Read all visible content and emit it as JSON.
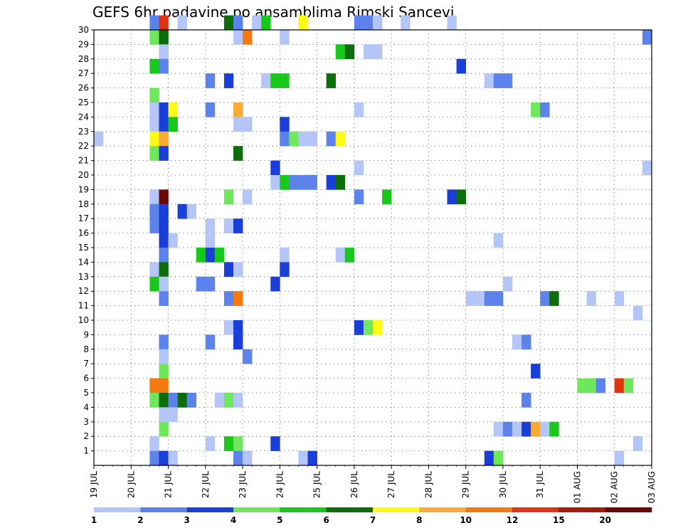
{
  "chart_data": {
    "type": "heatmap",
    "title": "GEFS 6hr padavine po ansamblima Rimski Sancevi",
    "xlabel": "",
    "ylabel": "",
    "x_tick_labels": [
      "19 JUL",
      "20 JUL",
      "21 JUL",
      "22 JUL",
      "23 JUL",
      "24 JUL",
      "25 JUL",
      "26 JUL",
      "27 JUL",
      "28 JUL",
      "29 JUL",
      "30 JUL",
      "31 JUL",
      "01 AUG",
      "02 AUG",
      "03 AUG"
    ],
    "x_steps_per_day": 4,
    "x_range_steps": [
      0,
      60
    ],
    "y_tick_labels": [
      "1",
      "2",
      "3",
      "4",
      "5",
      "6",
      "7",
      "8",
      "9",
      "10",
      "11",
      "12",
      "13",
      "14",
      "15",
      "16",
      "17",
      "18",
      "19",
      "20",
      "21",
      "22",
      "23",
      "24",
      "25",
      "26",
      "27",
      "28",
      "29",
      "30"
    ],
    "y_range": [
      0,
      30
    ],
    "grid": true,
    "colorbar": {
      "placement": "bottom",
      "labels": [
        "1",
        "2",
        "3",
        "4",
        "5",
        "6",
        "7",
        "8",
        "10",
        "12",
        "15",
        "20"
      ],
      "colors": [
        "#b4c6f8",
        "#5c82ec",
        "#1a3fd8",
        "#6ee85a",
        "#18c81a",
        "#0b6e0b",
        "#fdfb16",
        "#fbab32",
        "#f47a0f",
        "#de3412",
        "#a51a08",
        "#6b0808"
      ]
    },
    "cells_note_format": "[member, step, color_index]",
    "cells": [
      [
        30,
        6,
        1
      ],
      [
        30,
        7,
        9
      ],
      [
        30,
        9,
        0
      ],
      [
        30,
        14,
        5
      ],
      [
        30,
        15,
        1
      ],
      [
        30,
        17,
        0
      ],
      [
        30,
        18,
        4
      ],
      [
        30,
        22,
        6
      ],
      [
        30,
        28,
        1
      ],
      [
        30,
        29,
        1
      ],
      [
        30,
        30,
        0
      ],
      [
        30,
        33,
        0
      ],
      [
        30,
        38,
        0
      ],
      [
        29,
        6,
        3
      ],
      [
        29,
        7,
        5
      ],
      [
        29,
        15,
        0
      ],
      [
        29,
        16,
        8
      ],
      [
        29,
        20,
        0
      ],
      [
        29,
        59,
        1
      ],
      [
        28,
        7,
        0
      ],
      [
        28,
        26,
        4
      ],
      [
        28,
        27,
        5
      ],
      [
        28,
        29,
        0
      ],
      [
        28,
        30,
        0
      ],
      [
        27,
        6,
        4
      ],
      [
        27,
        7,
        1
      ],
      [
        27,
        39,
        2
      ],
      [
        26,
        12,
        1
      ],
      [
        26,
        14,
        2
      ],
      [
        26,
        18,
        0
      ],
      [
        26,
        19,
        4
      ],
      [
        26,
        20,
        4
      ],
      [
        26,
        25,
        5
      ],
      [
        26,
        42,
        0
      ],
      [
        26,
        43,
        1
      ],
      [
        26,
        44,
        1
      ],
      [
        25,
        6,
        3
      ],
      [
        24,
        6,
        0
      ],
      [
        24,
        7,
        2
      ],
      [
        24,
        8,
        6
      ],
      [
        24,
        12,
        1
      ],
      [
        24,
        15,
        7
      ],
      [
        24,
        28,
        0
      ],
      [
        24,
        47,
        3
      ],
      [
        24,
        48,
        1
      ],
      [
        23,
        6,
        0
      ],
      [
        23,
        7,
        2
      ],
      [
        23,
        8,
        4
      ],
      [
        23,
        15,
        0
      ],
      [
        23,
        16,
        0
      ],
      [
        23,
        20,
        2
      ],
      [
        22,
        0,
        0
      ],
      [
        22,
        6,
        6
      ],
      [
        22,
        7,
        7
      ],
      [
        22,
        20,
        1
      ],
      [
        22,
        21,
        3
      ],
      [
        22,
        22,
        0
      ],
      [
        22,
        23,
        0
      ],
      [
        22,
        25,
        1
      ],
      [
        22,
        26,
        6
      ],
      [
        21,
        6,
        3
      ],
      [
        21,
        7,
        2
      ],
      [
        21,
        15,
        5
      ],
      [
        20,
        19,
        2
      ],
      [
        20,
        28,
        0
      ],
      [
        20,
        59,
        0
      ],
      [
        19,
        19,
        0
      ],
      [
        19,
        20,
        4
      ],
      [
        19,
        21,
        1
      ],
      [
        19,
        22,
        1
      ],
      [
        19,
        23,
        1
      ],
      [
        19,
        25,
        2
      ],
      [
        19,
        26,
        5
      ],
      [
        18,
        6,
        0
      ],
      [
        18,
        7,
        11
      ],
      [
        18,
        14,
        3
      ],
      [
        18,
        16,
        0
      ],
      [
        18,
        28,
        1
      ],
      [
        18,
        31,
        4
      ],
      [
        18,
        38,
        2
      ],
      [
        18,
        39,
        5
      ],
      [
        17,
        6,
        1
      ],
      [
        17,
        7,
        2
      ],
      [
        17,
        9,
        2
      ],
      [
        17,
        10,
        0
      ],
      [
        16,
        6,
        1
      ],
      [
        16,
        7,
        2
      ],
      [
        16,
        12,
        0
      ],
      [
        16,
        14,
        0
      ],
      [
        16,
        15,
        2
      ],
      [
        15,
        7,
        2
      ],
      [
        15,
        8,
        0
      ],
      [
        15,
        12,
        0
      ],
      [
        15,
        43,
        0
      ],
      [
        14,
        7,
        1
      ],
      [
        14,
        11,
        4
      ],
      [
        14,
        12,
        2
      ],
      [
        14,
        13,
        4
      ],
      [
        14,
        20,
        0
      ],
      [
        14,
        26,
        0
      ],
      [
        14,
        27,
        4
      ],
      [
        13,
        6,
        0
      ],
      [
        13,
        7,
        5
      ],
      [
        13,
        14,
        2
      ],
      [
        13,
        15,
        0
      ],
      [
        13,
        20,
        2
      ],
      [
        12,
        6,
        4
      ],
      [
        12,
        7,
        0
      ],
      [
        12,
        11,
        1
      ],
      [
        12,
        12,
        1
      ],
      [
        12,
        19,
        2
      ],
      [
        12,
        44,
        0
      ],
      [
        11,
        7,
        1
      ],
      [
        11,
        14,
        1
      ],
      [
        11,
        15,
        8
      ],
      [
        11,
        40,
        0
      ],
      [
        11,
        41,
        0
      ],
      [
        11,
        42,
        1
      ],
      [
        11,
        43,
        1
      ],
      [
        11,
        48,
        1
      ],
      [
        11,
        49,
        5
      ],
      [
        11,
        53,
        0
      ],
      [
        11,
        56,
        0
      ],
      [
        10,
        58,
        0
      ],
      [
        9,
        14,
        0
      ],
      [
        9,
        15,
        2
      ],
      [
        9,
        28,
        2
      ],
      [
        9,
        29,
        3
      ],
      [
        9,
        30,
        6
      ],
      [
        8,
        7,
        1
      ],
      [
        8,
        12,
        1
      ],
      [
        8,
        15,
        2
      ],
      [
        8,
        45,
        0
      ],
      [
        8,
        46,
        1
      ],
      [
        7,
        7,
        0
      ],
      [
        7,
        16,
        1
      ],
      [
        6,
        7,
        3
      ],
      [
        6,
        47,
        2
      ],
      [
        5,
        6,
        8
      ],
      [
        5,
        7,
        8
      ],
      [
        5,
        52,
        3
      ],
      [
        5,
        53,
        3
      ],
      [
        5,
        54,
        1
      ],
      [
        5,
        56,
        9
      ],
      [
        5,
        57,
        3
      ],
      [
        4,
        6,
        3
      ],
      [
        4,
        7,
        5
      ],
      [
        4,
        8,
        1
      ],
      [
        4,
        9,
        5
      ],
      [
        4,
        10,
        1
      ],
      [
        4,
        13,
        0
      ],
      [
        4,
        14,
        3
      ],
      [
        4,
        15,
        0
      ],
      [
        4,
        46,
        1
      ],
      [
        3,
        7,
        0
      ],
      [
        3,
        8,
        0
      ],
      [
        2,
        7,
        3
      ],
      [
        2,
        43,
        0
      ],
      [
        2,
        44,
        1
      ],
      [
        2,
        45,
        0
      ],
      [
        2,
        46,
        2
      ],
      [
        2,
        47,
        7
      ],
      [
        2,
        48,
        0
      ],
      [
        2,
        49,
        4
      ],
      [
        1,
        6,
        0
      ],
      [
        1,
        12,
        0
      ],
      [
        1,
        14,
        4
      ],
      [
        1,
        15,
        3
      ],
      [
        1,
        19,
        2
      ],
      [
        1,
        58,
        0
      ],
      [
        0,
        6,
        1
      ],
      [
        0,
        7,
        2
      ],
      [
        0,
        8,
        0
      ],
      [
        0,
        15,
        1
      ],
      [
        0,
        16,
        0
      ],
      [
        0,
        22,
        0
      ],
      [
        0,
        23,
        2
      ],
      [
        0,
        42,
        2
      ],
      [
        0,
        43,
        3
      ],
      [
        0,
        56,
        0
      ]
    ]
  }
}
